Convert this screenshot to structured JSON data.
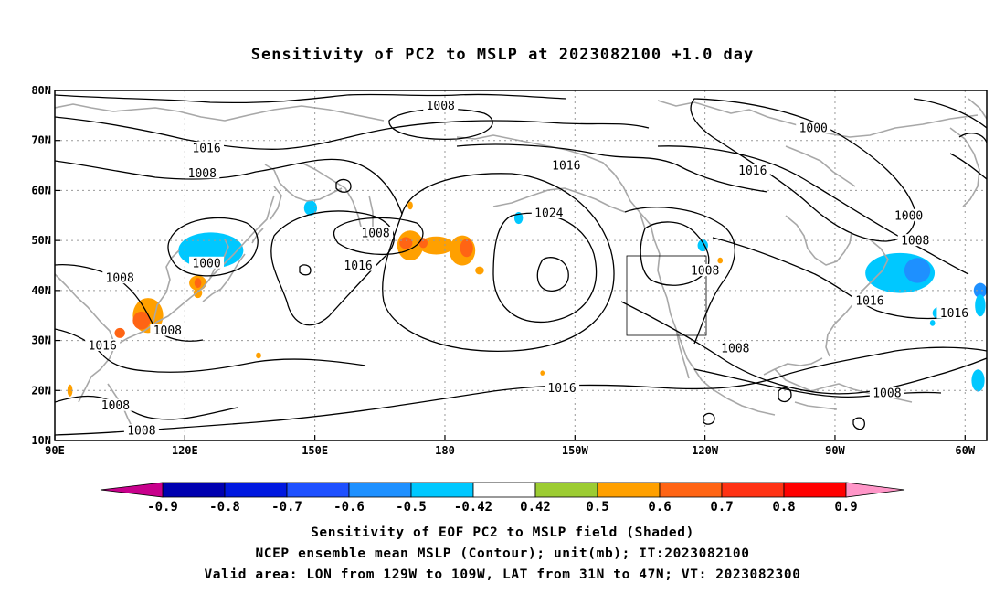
{
  "title": "Sensitivity of PC2 to MSLP at 2023082100 +1.0 day",
  "map": {
    "lon_range": [
      90,
      305
    ],
    "lat_range": [
      10,
      80
    ],
    "lon_ticks": [
      {
        "lon": 90,
        "label": "90E"
      },
      {
        "lon": 120,
        "label": "120E"
      },
      {
        "lon": 150,
        "label": "150E"
      },
      {
        "lon": 180,
        "label": "180"
      },
      {
        "lon": 210,
        "label": "150W"
      },
      {
        "lon": 240,
        "label": "120W"
      },
      {
        "lon": 270,
        "label": "90W"
      },
      {
        "lon": 300,
        "label": "60W"
      }
    ],
    "lat_ticks": [
      {
        "lat": 10,
        "label": "10N"
      },
      {
        "lat": 20,
        "label": "20N"
      },
      {
        "lat": 30,
        "label": "30N"
      },
      {
        "lat": 40,
        "label": "40N"
      },
      {
        "lat": 50,
        "label": "50N"
      },
      {
        "lat": 60,
        "label": "60N"
      },
      {
        "lat": 70,
        "label": "70N"
      },
      {
        "lat": 80,
        "label": "80N"
      }
    ],
    "grid": true,
    "valid_area": {
      "lon": [
        231,
        251
      ],
      "lat": [
        31,
        47
      ]
    },
    "contour_labels": [
      {
        "text": "1008",
        "lon": 179,
        "lat": 77
      },
      {
        "text": "1000",
        "lon": 265,
        "lat": 72.5
      },
      {
        "text": "1016",
        "lon": 125,
        "lat": 68.5
      },
      {
        "text": "1008",
        "lon": 124,
        "lat": 63.5
      },
      {
        "text": "1016",
        "lon": 208,
        "lat": 65
      },
      {
        "text": "1016",
        "lon": 251,
        "lat": 64
      },
      {
        "text": "1024",
        "lon": 204,
        "lat": 55.5
      },
      {
        "text": "1008",
        "lon": 164,
        "lat": 51.5
      },
      {
        "text": "1000",
        "lon": 287,
        "lat": 55
      },
      {
        "text": "1008",
        "lon": 288.5,
        "lat": 50
      },
      {
        "text": "1000",
        "lon": 125,
        "lat": 45.5
      },
      {
        "text": "1008",
        "lon": 105,
        "lat": 42.5
      },
      {
        "text": "1016",
        "lon": 160,
        "lat": 45
      },
      {
        "text": "1008",
        "lon": 240,
        "lat": 44
      },
      {
        "text": "1016",
        "lon": 278,
        "lat": 38
      },
      {
        "text": "1016",
        "lon": 297.5,
        "lat": 35.5
      },
      {
        "text": "1008",
        "lon": 116,
        "lat": 32
      },
      {
        "text": "1016",
        "lon": 101,
        "lat": 29
      },
      {
        "text": "1008",
        "lon": 247,
        "lat": 28.5
      },
      {
        "text": "1016",
        "lon": 207,
        "lat": 20.5
      },
      {
        "text": "1008",
        "lon": 282,
        "lat": 19.5
      },
      {
        "text": "1008",
        "lon": 104,
        "lat": 17
      },
      {
        "text": "1008",
        "lon": 110,
        "lat": 12
      }
    ],
    "sensitivity_blobs": [
      {
        "lon": 123,
        "lat": 48,
        "rx": 4,
        "ry": 2.5,
        "level": -0.7
      },
      {
        "lon": 130,
        "lat": 48.5,
        "rx": 3,
        "ry": 1.8,
        "level": -0.6
      },
      {
        "lon": 126,
        "lat": 48,
        "rx": 7.5,
        "ry": 3.6,
        "level": -0.5
      },
      {
        "lon": 149,
        "lat": 56.5,
        "rx": 1.5,
        "ry": 1.5,
        "level": -0.5
      },
      {
        "lon": 197,
        "lat": 54.5,
        "rx": 1,
        "ry": 1.2,
        "level": -0.5
      },
      {
        "lon": 239.5,
        "lat": 49,
        "rx": 1.2,
        "ry": 1.2,
        "level": -0.5
      },
      {
        "lon": 285,
        "lat": 43.5,
        "rx": 8,
        "ry": 4,
        "level": -0.5
      },
      {
        "lon": 289,
        "lat": 44,
        "rx": 3,
        "ry": 2.5,
        "level": -0.6
      },
      {
        "lon": 294,
        "lat": 35.5,
        "rx": 1.5,
        "ry": 1.2,
        "level": -0.5
      },
      {
        "lon": 303.5,
        "lat": 40,
        "rx": 1.5,
        "ry": 1.5,
        "level": -0.6
      },
      {
        "lon": 303.5,
        "lat": 37,
        "rx": 1.2,
        "ry": 2.2,
        "level": -0.5
      },
      {
        "lon": 303,
        "lat": 21,
        "rx": 1,
        "ry": 1.2,
        "level": -0.7
      },
      {
        "lon": 303,
        "lat": 22,
        "rx": 1.5,
        "ry": 2.2,
        "level": -0.5
      },
      {
        "lon": 292.5,
        "lat": 33.5,
        "rx": 0.6,
        "ry": 0.6,
        "level": -0.5
      },
      {
        "lon": 111.5,
        "lat": 35,
        "rx": 3.5,
        "ry": 3.5,
        "level": 0.5
      },
      {
        "lon": 110,
        "lat": 34,
        "rx": 2,
        "ry": 1.8,
        "level": 0.6
      },
      {
        "lon": 123,
        "lat": 41.5,
        "rx": 2,
        "ry": 1.5,
        "level": 0.5
      },
      {
        "lon": 123,
        "lat": 41.5,
        "rx": 0.8,
        "ry": 1,
        "level": 0.6
      },
      {
        "lon": 123,
        "lat": 39.5,
        "rx": 1,
        "ry": 1,
        "level": 0.5
      },
      {
        "lon": 105,
        "lat": 31.5,
        "rx": 1.2,
        "ry": 1,
        "level": 0.6
      },
      {
        "lon": 172,
        "lat": 49,
        "rx": 3,
        "ry": 3,
        "level": 0.5
      },
      {
        "lon": 171,
        "lat": 49.5,
        "rx": 1.5,
        "ry": 1.2,
        "level": 0.6
      },
      {
        "lon": 178,
        "lat": 49,
        "rx": 4,
        "ry": 1.8,
        "level": 0.5
      },
      {
        "lon": 184,
        "lat": 48,
        "rx": 3,
        "ry": 3,
        "level": 0.5
      },
      {
        "lon": 185,
        "lat": 48.5,
        "rx": 1.5,
        "ry": 1.8,
        "level": 0.6
      },
      {
        "lon": 175,
        "lat": 49.5,
        "rx": 1,
        "ry": 1,
        "level": 0.6
      },
      {
        "lon": 188,
        "lat": 44,
        "rx": 1,
        "ry": 0.8,
        "level": 0.5
      },
      {
        "lon": 172,
        "lat": 57,
        "rx": 0.6,
        "ry": 0.8,
        "level": 0.5
      },
      {
        "lon": 93.5,
        "lat": 20,
        "rx": 0.6,
        "ry": 1.2,
        "level": 0.5
      },
      {
        "lon": 137,
        "lat": 27,
        "rx": 0.6,
        "ry": 0.6,
        "level": 0.5
      },
      {
        "lon": 243.5,
        "lat": 46,
        "rx": 0.6,
        "ry": 0.6,
        "level": 0.5
      },
      {
        "lon": 202.5,
        "lat": 23.5,
        "rx": 0.5,
        "ry": 0.5,
        "level": 0.5
      }
    ]
  },
  "colorbar": {
    "levels": [
      "-0.9",
      "-0.8",
      "-0.7",
      "-0.6",
      "-0.5",
      "-0.42",
      "0.42",
      "0.5",
      "0.6",
      "0.7",
      "0.8",
      "0.9"
    ],
    "colors": [
      "#0000b0",
      "#0018e0",
      "#1e50ff",
      "#1e90ff",
      "#00c8ff",
      "#ffffff",
      "#9ccc32",
      "#ffa000",
      "#ff6414",
      "#ff3214",
      "#ff0000"
    ],
    "low_color": "#c8008c",
    "high_color": "#ff96c8"
  },
  "captions": {
    "line1": "Sensitivity of EOF PC2 to MSLP field (Shaded)",
    "line2": "NCEP ensemble mean MSLP (Contour); unit(mb); IT:2023082100",
    "line3": "Valid area: LON from 129W to 109W, LAT from 31N to 47N; VT: 2023082300"
  }
}
